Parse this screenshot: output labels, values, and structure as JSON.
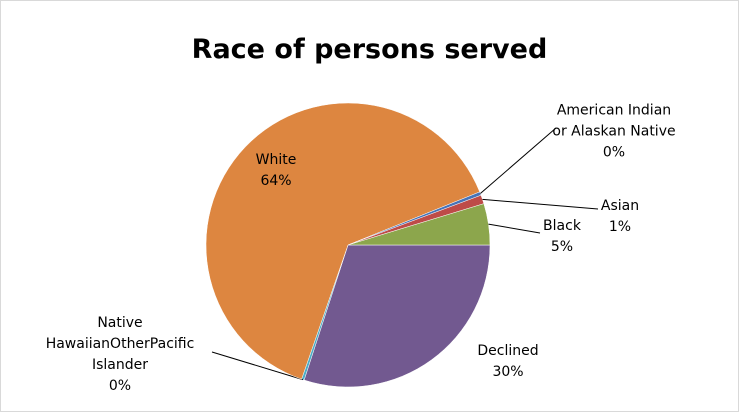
{
  "chart_data": {
    "type": "pie",
    "title": "Race of persons served",
    "categories": [
      "Declined",
      "Native HawaiianOtherPacificIslander",
      "White",
      "American Indian or Alaskan Native",
      "Asian",
      "Black"
    ],
    "values": [
      30,
      0.3,
      63.6,
      0.4,
      1,
      4.7
    ],
    "value_labels": [
      "30%",
      "0%",
      "64%",
      "0%",
      "1%",
      "5%"
    ],
    "colors": [
      "#725990",
      "#4bacc6",
      "#dd8640",
      "#4673b8",
      "#be4b48",
      "#8ca64c"
    ]
  }
}
